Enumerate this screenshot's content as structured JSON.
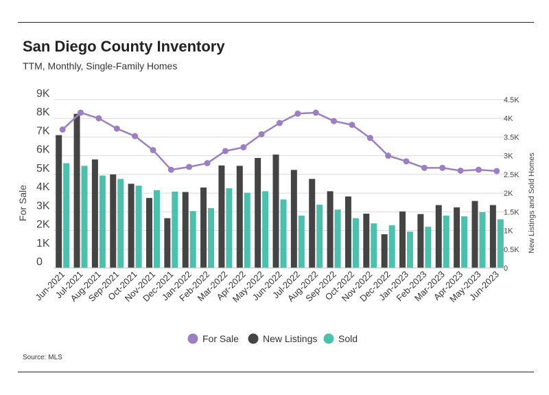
{
  "header": {
    "title": "San Diego County Inventory",
    "subtitle": "TTM, Monthly, Single-Family Homes"
  },
  "footer": {
    "source": "Source: MLS"
  },
  "chart_data": {
    "type": "bar",
    "categories": [
      "Jun-2021",
      "Jul-2021",
      "Aug-2021",
      "Sep-2021",
      "Oct-2021",
      "Nov-2021",
      "Dec-2021",
      "Jan-2022",
      "Feb-2022",
      "Mar-2022",
      "Apr-2022",
      "May-2022",
      "Jun-2022",
      "Jul-2022",
      "Aug-2022",
      "Sep-2022",
      "Oct-2022",
      "Nov-2022",
      "Dec-2022",
      "Jan-2023",
      "Feb-2023",
      "Mar-2023",
      "Apr-2023",
      "May-2023",
      "Jun-2023"
    ],
    "series": [
      {
        "name": "For Sale",
        "type": "line",
        "axis": "left",
        "color": "#9b7fc0",
        "values": [
          7400,
          8300,
          8000,
          7450,
          7050,
          6300,
          5250,
          5400,
          5600,
          6250,
          6450,
          7150,
          7750,
          8250,
          8300,
          7850,
          7650,
          6950,
          6000,
          5700,
          5350,
          5350,
          5200,
          5250,
          5180
        ]
      },
      {
        "name": "New Listings",
        "type": "bar",
        "axis": "right",
        "color": "#444444",
        "values": [
          3550,
          4120,
          2900,
          2500,
          2250,
          1870,
          1330,
          2030,
          2150,
          2740,
          2730,
          2940,
          3030,
          2620,
          2380,
          2050,
          1910,
          1450,
          900,
          1510,
          1440,
          1680,
          1620,
          1790,
          1680
        ]
      },
      {
        "name": "Sold",
        "type": "bar",
        "axis": "right",
        "color": "#4dbfad",
        "values": [
          2800,
          2730,
          2470,
          2380,
          2200,
          2080,
          2040,
          1520,
          1600,
          2130,
          2010,
          2050,
          1830,
          1400,
          1690,
          1560,
          1330,
          1190,
          1140,
          970,
          1100,
          1400,
          1380,
          1490,
          1300
        ]
      }
    ],
    "left_axis": {
      "label": "For Sale",
      "min": 0,
      "max": 9000,
      "ticks": [
        0,
        1000,
        2000,
        3000,
        4000,
        5000,
        6000,
        7000,
        8000,
        9000
      ],
      "tick_labels": [
        "0",
        "1K",
        "2K",
        "3K",
        "4K",
        "5K",
        "6K",
        "7K",
        "8K",
        "9K"
      ]
    },
    "right_axis": {
      "label": "New Listings and Sold Homes",
      "min": 0,
      "max": 4500,
      "ticks": [
        0,
        500,
        1000,
        1500,
        2000,
        2500,
        3000,
        3500,
        4000,
        4500
      ],
      "tick_labels": [
        "0",
        "0.5K",
        "1K",
        "1.5K",
        "2K",
        "2.5K",
        "3K",
        "3.5K",
        "4K",
        "4.5K"
      ]
    },
    "grid": true,
    "legend_position": "bottom"
  }
}
